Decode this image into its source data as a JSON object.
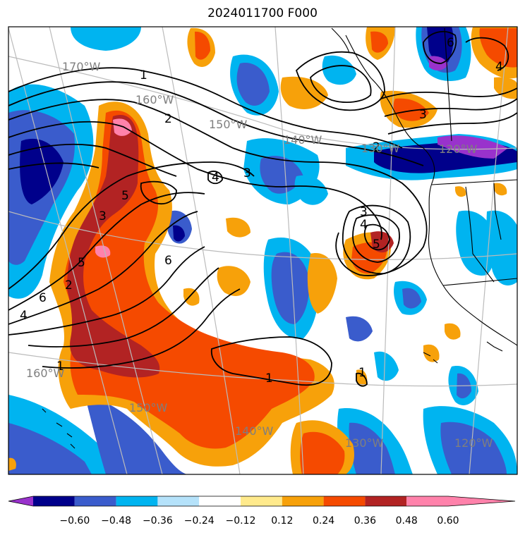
{
  "title": "2024011700 F000",
  "lon_labels": [
    "170°W",
    "160°W",
    "150°W",
    "140°W",
    "130°W",
    "120°W",
    "160°W",
    "150°W",
    "140°W",
    "130°W",
    "120°W"
  ],
  "contour_labels": [
    "1",
    "2",
    "3",
    "4",
    "5",
    "6",
    "3",
    "4",
    "5",
    "6",
    "4",
    "3",
    "2",
    "1",
    "1",
    "6",
    "5",
    "4",
    "3",
    "2",
    "1"
  ],
  "colorbar": {
    "ticks": [
      "−0.60",
      "−0.48",
      "−0.36",
      "−0.24",
      "−0.12",
      "0.12",
      "0.24",
      "0.36",
      "0.48",
      "0.60"
    ],
    "colors": [
      "#9932cc",
      "#00008b",
      "#3a5ccc",
      "#00b4f0",
      "#b5e2fa",
      "#ffffff",
      "#ffea8c",
      "#f7a10a",
      "#f54a00",
      "#b22323",
      "#ff82ab"
    ]
  },
  "colors": {
    "frame": "#000000",
    "grid": "#bbbbbb",
    "land_line": "#000000",
    "contour": "#000000"
  }
}
